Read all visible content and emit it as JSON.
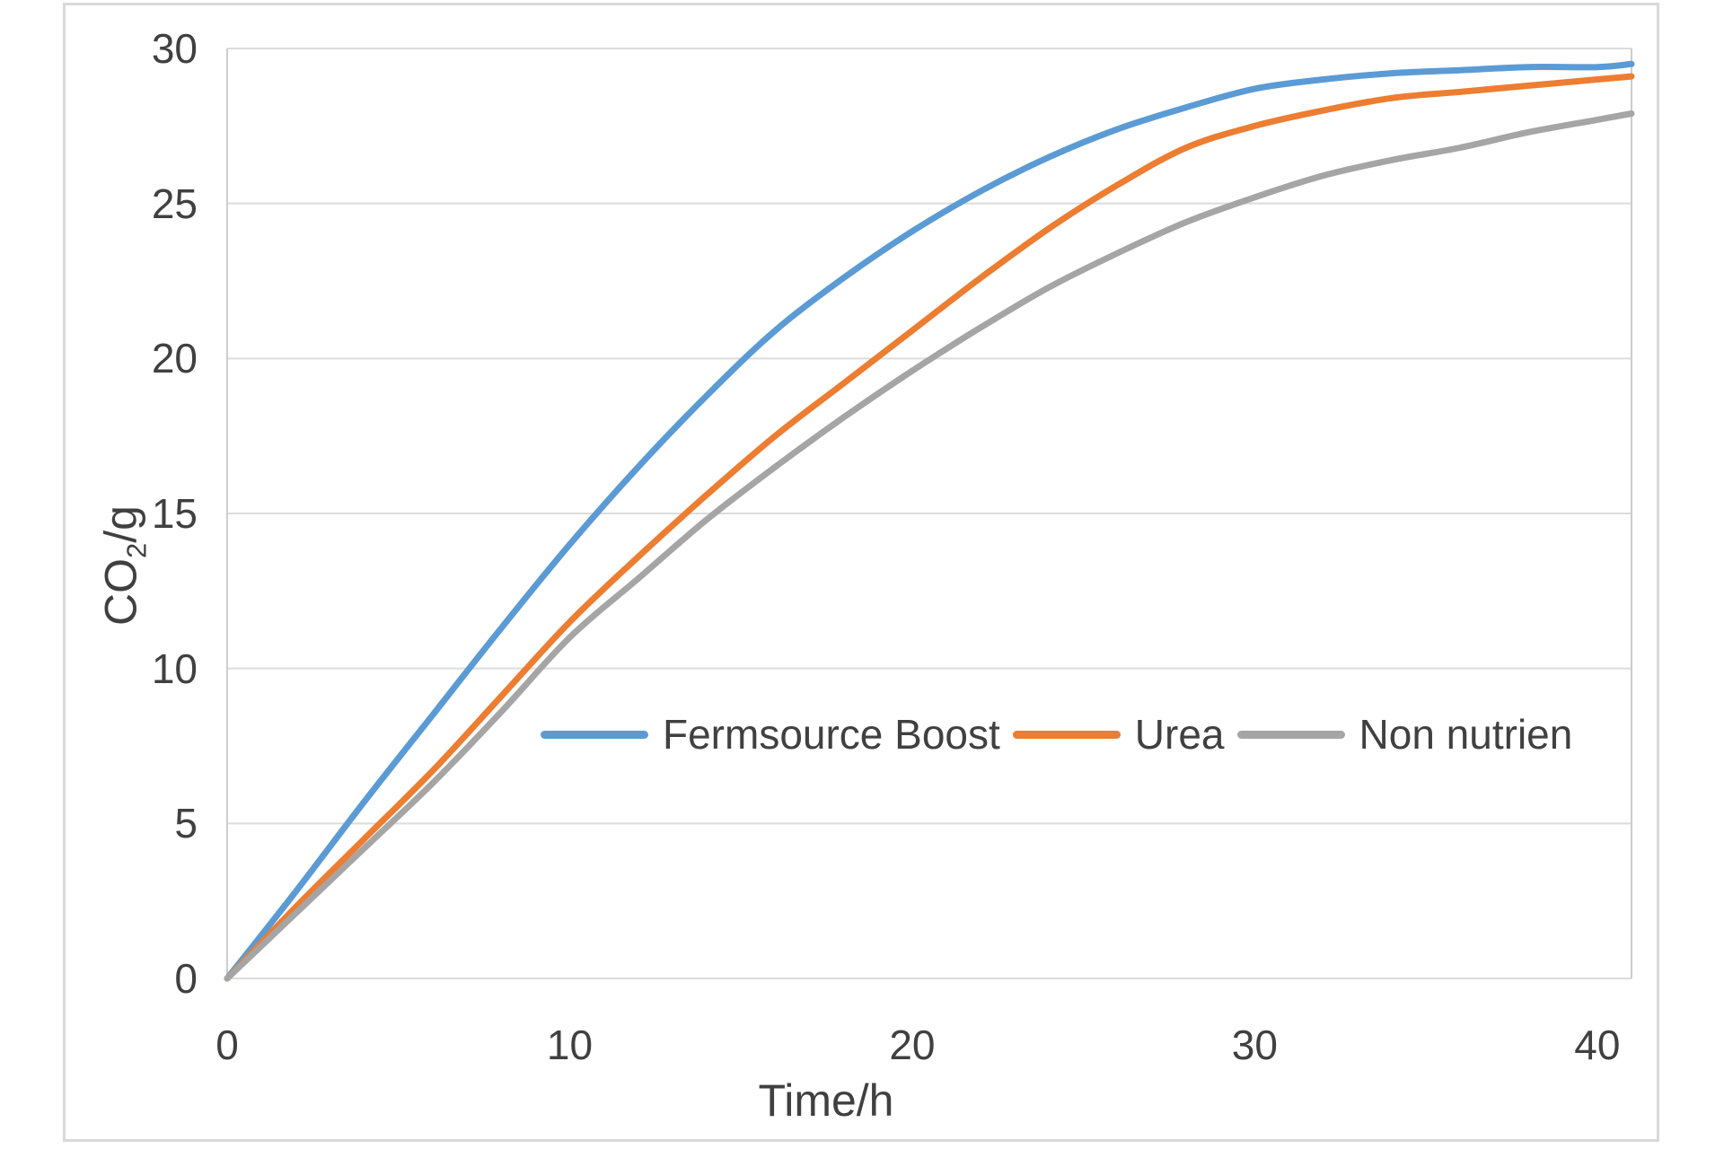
{
  "chart_data": {
    "type": "line",
    "title": "",
    "xlabel": "Time/h",
    "ylabel": "CO2/g",
    "ylabel_parts": {
      "prefix": "CO",
      "sub": "2",
      "suffix": "/g"
    },
    "xlim": [
      0,
      41
    ],
    "ylim": [
      0,
      30
    ],
    "xticks": [
      0,
      10,
      20,
      30,
      40
    ],
    "yticks": [
      0,
      5,
      10,
      15,
      20,
      25,
      30
    ],
    "grid": "horizontal",
    "legend_position": "inside-center-right",
    "x": [
      0,
      2,
      4,
      6,
      8,
      10,
      12,
      14,
      16,
      18,
      20,
      22,
      24,
      26,
      28,
      30,
      32,
      34,
      36,
      38,
      40,
      41
    ],
    "series": [
      {
        "name": "Fermsource Boost",
        "color": "#5B9BD5",
        "values": [
          0,
          2.8,
          5.7,
          8.5,
          11.3,
          14.0,
          16.5,
          18.8,
          20.9,
          22.6,
          24.1,
          25.4,
          26.5,
          27.4,
          28.1,
          28.7,
          29.0,
          29.2,
          29.3,
          29.4,
          29.4,
          29.5
        ]
      },
      {
        "name": "Urea",
        "color": "#ED7D31",
        "values": [
          0,
          2.3,
          4.5,
          6.7,
          9.1,
          11.5,
          13.6,
          15.6,
          17.5,
          19.2,
          20.9,
          22.6,
          24.2,
          25.6,
          26.8,
          27.5,
          28.0,
          28.4,
          28.6,
          28.8,
          29.0,
          29.1
        ]
      },
      {
        "name": "Non nutrien",
        "color": "#A5A5A5",
        "values": [
          0,
          2.1,
          4.2,
          6.3,
          8.6,
          11.0,
          12.9,
          14.8,
          16.5,
          18.1,
          19.6,
          21.0,
          22.3,
          23.4,
          24.4,
          25.2,
          25.9,
          26.4,
          26.8,
          27.3,
          27.7,
          27.9
        ]
      }
    ],
    "colors": {
      "gridline": "#DCDCDC",
      "plot_border": "#CDCDCD",
      "frame_border": "#D9D9D9",
      "text": "#404040"
    }
  }
}
